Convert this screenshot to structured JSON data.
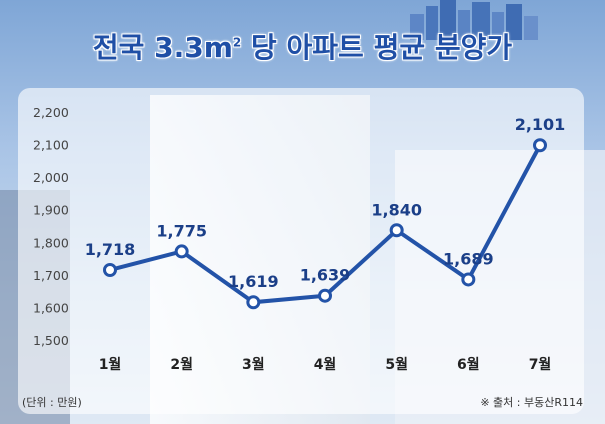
{
  "title_main": "전국 3.3m",
  "title_sup": "2",
  "title_rest": " 당 아파트 평균 분양가",
  "unit_label": "(단위 : 만원)",
  "source_label": "※ 출처 : 부동산R114",
  "colors": {
    "line": "#2353a8",
    "marker_fill": "#ffffff",
    "title": "#1f4fa6",
    "label": "#1b3f88"
  },
  "chart_data": {
    "type": "line",
    "categories": [
      "1월",
      "2월",
      "3월",
      "4월",
      "5월",
      "6월",
      "7월"
    ],
    "series": [
      {
        "values": [
          1718,
          1775,
          1619,
          1639,
          1840,
          1689,
          2101
        ]
      }
    ],
    "data_labels": [
      "1,718",
      "1,775",
      "1,619",
      "1,639",
      "1,840",
      "1,689",
      "2,101"
    ],
    "yticks": [
      "2,200",
      "2,100",
      "2,000",
      "1,900",
      "1,800",
      "1,700",
      "1,600",
      "1,500"
    ],
    "ytick_values": [
      2200,
      2100,
      2000,
      1900,
      1800,
      1700,
      1600,
      1500
    ],
    "ylim": [
      1500,
      2200
    ],
    "grid": false
  }
}
